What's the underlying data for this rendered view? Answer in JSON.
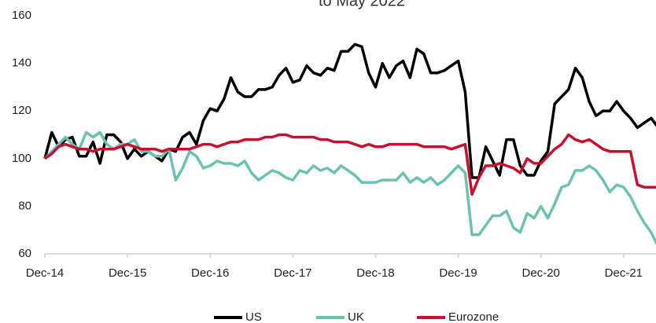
{
  "chart_data": {
    "type": "line",
    "title": "to May 2022",
    "categories": [
      "Dec-14",
      null,
      null,
      null,
      null,
      null,
      null,
      null,
      null,
      null,
      null,
      null,
      "Dec-15",
      null,
      null,
      null,
      null,
      null,
      null,
      null,
      null,
      null,
      null,
      null,
      "Dec-16",
      null,
      null,
      null,
      null,
      null,
      null,
      null,
      null,
      null,
      null,
      null,
      "Dec-17",
      null,
      null,
      null,
      null,
      null,
      null,
      null,
      null,
      null,
      null,
      null,
      "Dec-18",
      null,
      null,
      null,
      null,
      null,
      null,
      null,
      null,
      null,
      null,
      null,
      "Dec-19",
      null,
      null,
      null,
      null,
      null,
      null,
      null,
      null,
      null,
      null,
      null,
      "Dec-20",
      null,
      null,
      null,
      null,
      null,
      null,
      null,
      null,
      null,
      null,
      null,
      "Dec-21",
      null,
      null,
      null,
      null,
      null
    ],
    "series": [
      {
        "name": "US",
        "color": "#000000",
        "values": [
          100,
          111,
          105,
          108,
          109,
          101,
          101,
          107,
          98,
          110,
          110,
          107,
          100,
          104,
          101,
          103,
          101,
          99,
          104,
          103,
          109,
          111,
          106,
          116,
          121,
          120,
          125,
          134,
          128,
          126,
          126,
          129,
          129,
          130,
          135,
          138,
          132,
          133,
          139,
          136,
          135,
          138,
          137,
          145,
          145,
          148,
          147,
          136,
          130,
          140,
          134,
          139,
          141,
          134,
          146,
          144,
          136,
          136,
          137,
          139,
          141,
          128,
          92,
          92,
          105,
          99,
          93,
          108,
          108,
          97,
          93,
          93,
          99,
          103,
          123,
          126,
          129,
          138,
          134,
          124,
          118,
          120,
          120,
          124,
          120,
          117,
          113,
          115,
          117,
          113
        ]
      },
      {
        "name": "UK",
        "color": "#6cc2b0",
        "values": [
          100,
          103,
          106,
          109,
          106,
          104,
          111,
          109,
          111,
          106,
          104,
          106,
          106,
          108,
          103,
          103,
          101,
          101,
          104,
          91,
          96,
          103,
          101,
          96,
          97,
          99,
          98,
          98,
          97,
          99,
          94,
          91,
          93,
          95,
          94,
          92,
          91,
          95,
          94,
          97,
          95,
          96,
          94,
          97,
          95,
          93,
          90,
          90,
          90,
          91,
          91,
          91,
          94,
          90,
          92,
          90,
          92,
          89,
          91,
          94,
          97,
          94,
          68,
          68,
          72,
          76,
          76,
          78,
          71,
          69,
          77,
          75,
          80,
          75,
          81,
          88,
          89,
          95,
          95,
          97,
          95,
          91,
          86,
          89,
          88,
          84,
          78,
          73,
          69,
          63
        ]
      },
      {
        "name": "Eurozone",
        "color": "#c8102e",
        "values": [
          100,
          102,
          105,
          106,
          105,
          104,
          104,
          103,
          104,
          104,
          104,
          105,
          106,
          105,
          104,
          104,
          104,
          103,
          104,
          104,
          104,
          104,
          105,
          106,
          106,
          105,
          106,
          107,
          107,
          108,
          108,
          108,
          109,
          109,
          110,
          110,
          109,
          109,
          109,
          109,
          108,
          108,
          107,
          107,
          107,
          106,
          105,
          106,
          105,
          105,
          106,
          106,
          106,
          106,
          106,
          105,
          105,
          105,
          105,
          104,
          105,
          106,
          85,
          92,
          97,
          97,
          98,
          97,
          96,
          94,
          100,
          98,
          98,
          101,
          104,
          106,
          110,
          108,
          107,
          108,
          106,
          104,
          103,
          103,
          103,
          103,
          89,
          88,
          88,
          88
        ]
      }
    ],
    "ylim": [
      60,
      160
    ],
    "yticks": [
      60,
      80,
      100,
      120,
      140,
      160
    ]
  }
}
